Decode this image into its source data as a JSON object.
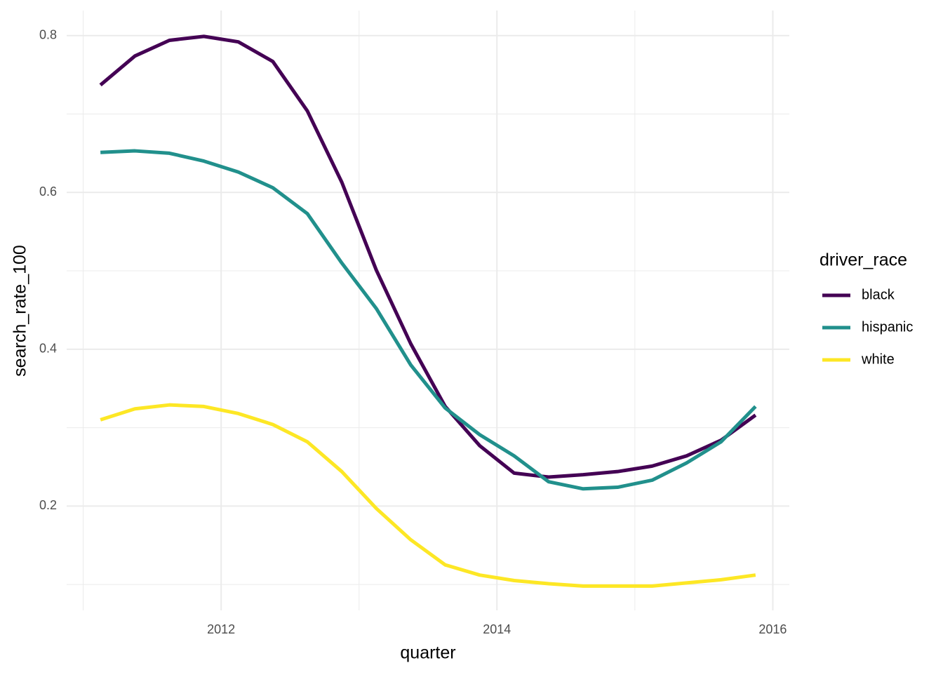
{
  "chart_data": {
    "type": "line",
    "x_label": "quarter",
    "y_label": "search_rate_100",
    "legend_title": "driver_race",
    "x": [
      2011.125,
      2011.375,
      2011.625,
      2011.875,
      2012.125,
      2012.375,
      2012.625,
      2012.875,
      2013.125,
      2013.375,
      2013.625,
      2013.875,
      2014.125,
      2014.375,
      2014.625,
      2014.875,
      2015.125,
      2015.375,
      2015.625,
      2015.875
    ],
    "series": [
      {
        "name": "black",
        "color": "#440154",
        "values": [
          0.737,
          0.774,
          0.794,
          0.799,
          0.792,
          0.767,
          0.704,
          0.613,
          0.501,
          0.407,
          0.327,
          0.277,
          0.242,
          0.237,
          0.24,
          0.244,
          0.251,
          0.264,
          0.284,
          0.316
        ]
      },
      {
        "name": "hispanic",
        "color": "#21908C",
        "values": [
          0.651,
          0.653,
          0.65,
          0.64,
          0.626,
          0.606,
          0.573,
          0.51,
          0.452,
          0.38,
          0.325,
          0.291,
          0.264,
          0.231,
          0.222,
          0.224,
          0.233,
          0.255,
          0.282,
          0.327
        ]
      },
      {
        "name": "white",
        "color": "#FDE725",
        "values": [
          0.31,
          0.324,
          0.329,
          0.327,
          0.318,
          0.304,
          0.282,
          0.244,
          0.197,
          0.157,
          0.125,
          0.112,
          0.105,
          0.101,
          0.098,
          0.098,
          0.098,
          0.102,
          0.106,
          0.112
        ]
      }
    ],
    "xlim": [
      2010.88,
      2016.12
    ],
    "xticks": [
      2012,
      2014,
      2016
    ],
    "ylim": [
      0.067,
      0.832
    ],
    "yticks": [
      0.2,
      0.4,
      0.6,
      0.8
    ],
    "grid": true,
    "legend": "right"
  }
}
